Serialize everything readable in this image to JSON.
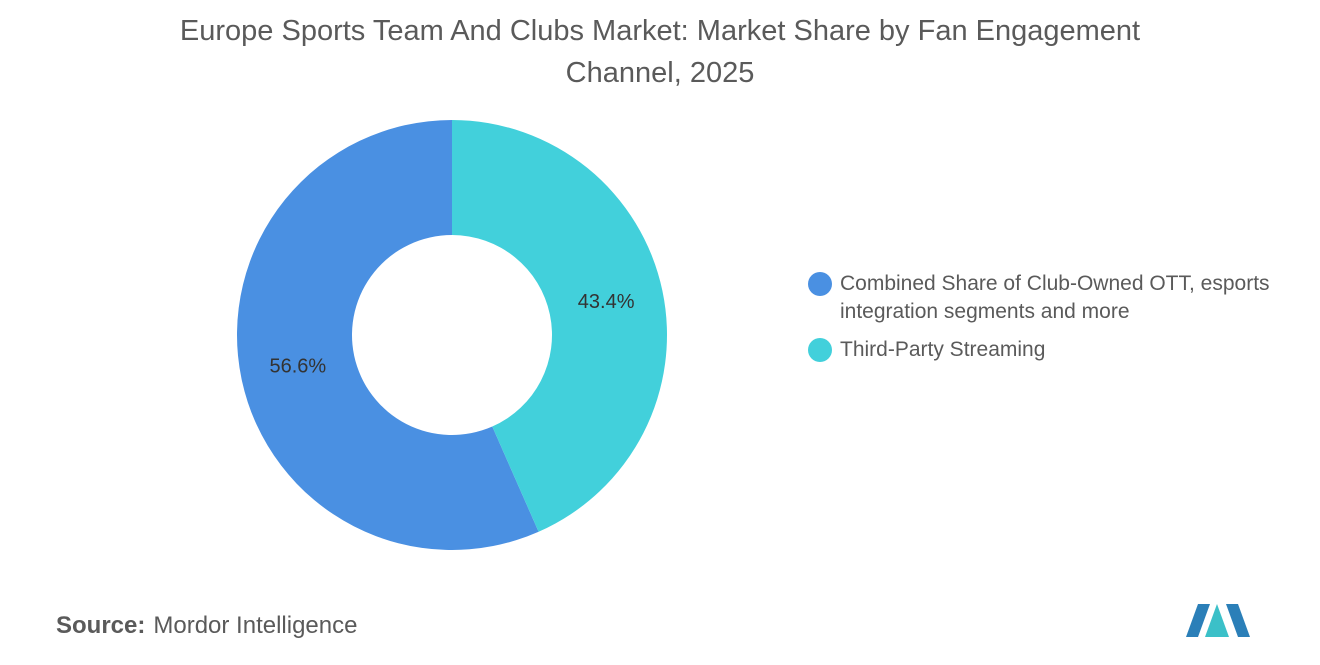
{
  "chart_data": {
    "type": "pie",
    "donut": true,
    "title": "Europe Sports Team And Clubs Market: Market Share by Fan Engagement Channel, 2025",
    "categories": [
      "Combined Share of Club-Owned OTT, esports integration segments and more",
      "Third-Party Streaming"
    ],
    "values": [
      56.6,
      43.4
    ],
    "value_labels": [
      "56.6%",
      "43.4%"
    ],
    "colors": [
      "#4a90e2",
      "#42d0db"
    ],
    "source_label": "Source:",
    "source": "Mordor Intelligence"
  }
}
